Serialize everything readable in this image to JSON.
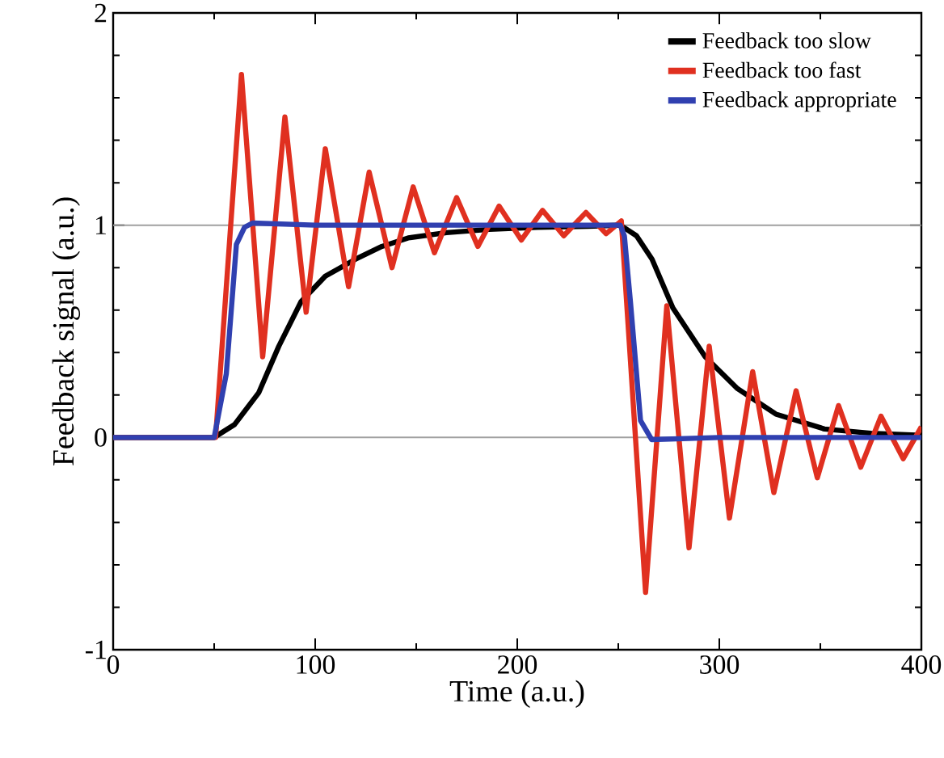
{
  "chart_data": {
    "type": "line",
    "xlabel": "Time (a.u.)",
    "ylabel": "Feedback signal (a.u.)",
    "xlim": [
      0,
      400
    ],
    "ylim": [
      -1,
      2
    ],
    "xticks": [
      0,
      100,
      200,
      300,
      400
    ],
    "yticks": [
      -1,
      0,
      1,
      2
    ],
    "legend": "top right",
    "grid": false,
    "marker": "none",
    "line_style": "solid",
    "ref_lines": [
      {
        "axis": "y",
        "value": 0,
        "color": "#a0a0a0"
      },
      {
        "axis": "y",
        "value": 1,
        "color": "#a0a0a0"
      }
    ],
    "series": [
      {
        "name": "Feedback too slow",
        "color": "#000000",
        "x": [
          0,
          50,
          60,
          72,
          82,
          93,
          105,
          120,
          133,
          146,
          165,
          186,
          210,
          235,
          251,
          259,
          266.7,
          277,
          293,
          309,
          328,
          352,
          375,
          400
        ],
        "values": [
          0,
          0,
          0.06,
          0.21,
          0.43,
          0.64,
          0.76,
          0.84,
          0.9,
          0.94,
          0.965,
          0.98,
          0.99,
          0.995,
          1,
          0.95,
          0.84,
          0.61,
          0.38,
          0.23,
          0.11,
          0.04,
          0.02,
          0.01
        ]
      },
      {
        "name": "Feedback too fast",
        "color": "#e03020",
        "x": [
          0,
          50.7,
          63.5,
          74,
          85,
          95.5,
          105,
          116.5,
          126.7,
          138,
          148.5,
          159,
          170,
          180.5,
          191,
          202,
          212.5,
          223,
          234,
          244,
          251.5,
          263.5,
          274,
          285,
          295,
          305,
          316.5,
          327,
          338,
          348.5,
          359,
          370,
          380,
          391,
          400
        ],
        "values": [
          0,
          0,
          1.71,
          0.38,
          1.51,
          0.59,
          1.36,
          0.71,
          1.25,
          0.8,
          1.18,
          0.87,
          1.13,
          0.9,
          1.09,
          0.93,
          1.07,
          0.95,
          1.06,
          0.96,
          1.02,
          -0.73,
          0.62,
          -0.52,
          0.43,
          -0.38,
          0.31,
          -0.26,
          0.22,
          -0.19,
          0.15,
          -0.14,
          0.1,
          -0.1,
          0.05
        ]
      },
      {
        "name": "Feedback appropriate",
        "color": "#3040b0",
        "x": [
          0,
          50,
          56,
          61,
          65,
          69,
          100,
          200,
          251,
          253,
          256,
          261,
          266.5,
          300,
          400
        ],
        "values": [
          0,
          0,
          0.3,
          0.91,
          0.99,
          1.01,
          1,
          1,
          1,
          0.95,
          0.64,
          0.08,
          -0.01,
          0,
          0
        ]
      }
    ]
  }
}
